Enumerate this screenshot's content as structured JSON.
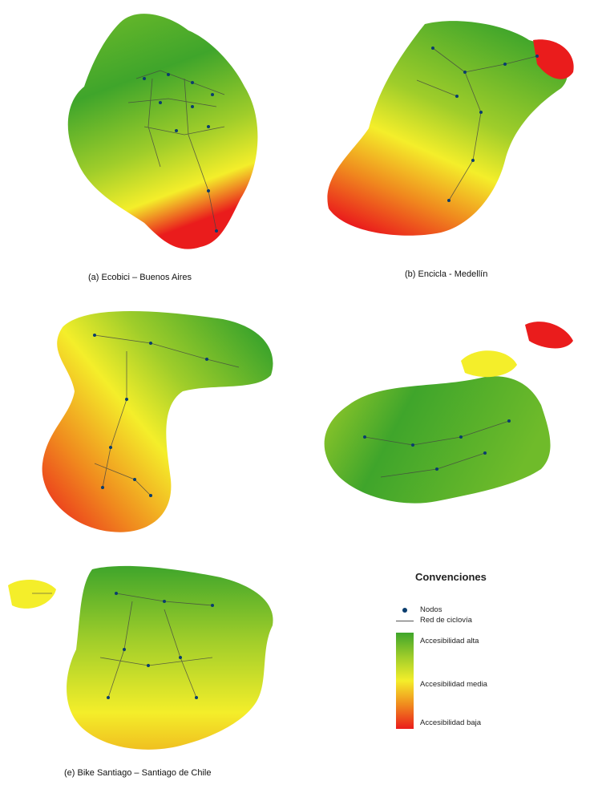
{
  "captions": {
    "a": "(a)     Ecobici – Buenos Aires",
    "b": "(b)     Encicla - Medellín",
    "e": "(e) Bike Santiago – Santiago de Chile"
  },
  "legend": {
    "title": "Convenciones",
    "nodes": "Nodos",
    "network": "Red de ciclovía",
    "high": "Accesibilidad alta",
    "medium": "Accesibilidad media",
    "low": "Accesibilidad baja"
  },
  "colors": {
    "high": "#3fa52b",
    "medium_high": "#9fcd2a",
    "medium": "#f4ee2a",
    "medium_low": "#f08a1e",
    "low": "#ea1c1c",
    "node": "#0a3d6e",
    "network": "#555555"
  }
}
